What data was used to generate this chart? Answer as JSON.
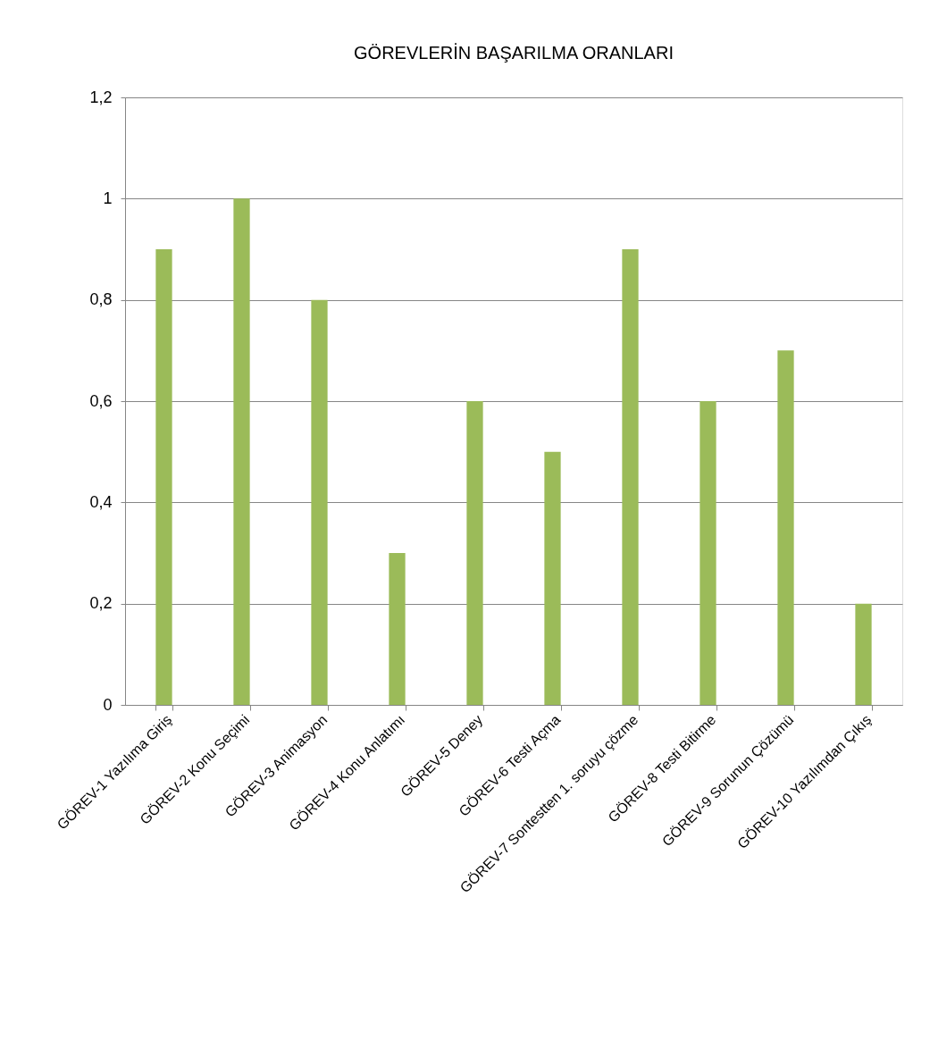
{
  "chart_data": {
    "type": "bar",
    "title": "GÖREVLERİN BAŞARILMA ORANLARI",
    "categories": [
      "GÖREV-1 Yazılıma Giriş",
      "GÖREV-2 Konu Seçimi",
      "GÖREV-3 Animasyon",
      "GÖREV-4 Konu Anlatımı",
      "GÖREV-5 Deney",
      "GÖREV-6 Testi Açma",
      "GÖREV-7 Sontestten 1. soruyu çözme",
      "GÖREV-8 Testi Bitirme",
      "GÖREV-9 Sorunun Çözümü",
      "GÖREV-10 Yazılımdan Çıkış"
    ],
    "values": [
      0.9,
      1,
      0.8,
      0.3,
      0.6,
      0.5,
      0.9,
      0.6,
      0.7,
      0.2
    ],
    "color": "#9bbb59",
    "ylim": [
      0,
      1.2
    ],
    "yticks": [
      0,
      {
        "value": 0.2,
        "label": "0,2"
      },
      {
        "value": 0.4,
        "label": "0,4"
      },
      {
        "value": 0.6,
        "label": "0,6"
      },
      {
        "value": 0.8,
        "label": "0,8"
      },
      1,
      {
        "value": 1.2,
        "label": "1,2"
      }
    ],
    "grid": "y"
  }
}
